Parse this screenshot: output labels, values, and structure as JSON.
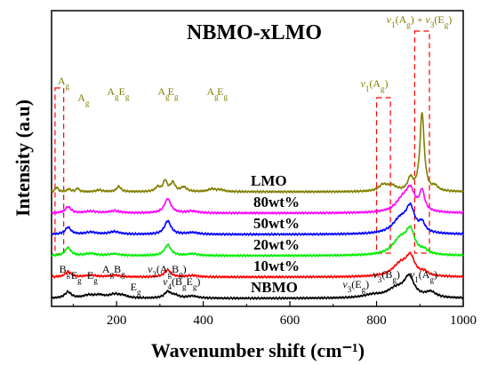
{
  "chart_data": {
    "type": "line",
    "title": "NBMO-xLMO",
    "xlabel": "Wavenumber shift (cm⁻¹)",
    "ylabel": "Intensity (a.u)",
    "xlim": [
      50,
      1000
    ],
    "xticks": [
      200,
      400,
      600,
      800,
      1000
    ],
    "grid": false,
    "series": [
      {
        "name": "LMO",
        "color": "#808000",
        "offset": 6,
        "peaks": [
          [
            62,
            0.25,
            4
          ],
          [
            90,
            0.15,
            5
          ],
          [
            110,
            0.2,
            4
          ],
          [
            160,
            0.1,
            8
          ],
          [
            205,
            0.3,
            6
          ],
          [
            295,
            0.25,
            6
          ],
          [
            312,
            0.6,
            6
          ],
          [
            330,
            0.5,
            6
          ],
          [
            355,
            0.25,
            8
          ],
          [
            420,
            0.15,
            10
          ],
          [
            440,
            0.1,
            10
          ],
          [
            815,
            0.35,
            12
          ],
          [
            835,
            0.3,
            12
          ],
          [
            878,
            0.7,
            7
          ],
          [
            905,
            4.4,
            6
          ],
          [
            935,
            0.25,
            8
          ]
        ]
      },
      {
        "name": "80wt%",
        "color": "#ff00ff",
        "offset": 4.8,
        "peaks": [
          [
            88,
            0.35,
            8
          ],
          [
            140,
            0.1,
            15
          ],
          [
            195,
            0.12,
            15
          ],
          [
            318,
            0.8,
            9
          ],
          [
            375,
            0.1,
            15
          ],
          [
            860,
            0.7,
            20
          ],
          [
            878,
            1.1,
            12
          ],
          [
            905,
            1.1,
            7
          ]
        ]
      },
      {
        "name": "50wt%",
        "color": "#0000ff",
        "offset": 3.6,
        "peaks": [
          [
            88,
            0.4,
            8
          ],
          [
            140,
            0.12,
            15
          ],
          [
            195,
            0.15,
            15
          ],
          [
            318,
            0.75,
            9
          ],
          [
            375,
            0.1,
            15
          ],
          [
            855,
            0.8,
            22
          ],
          [
            878,
            1.3,
            12
          ],
          [
            905,
            0.5,
            8
          ]
        ]
      },
      {
        "name": "20wt%",
        "color": "#00ee00",
        "offset": 2.4,
        "peaks": [
          [
            88,
            0.45,
            8
          ],
          [
            140,
            0.12,
            15
          ],
          [
            195,
            0.1,
            15
          ],
          [
            318,
            0.6,
            9
          ],
          [
            375,
            0.1,
            15
          ],
          [
            855,
            0.9,
            22
          ],
          [
            878,
            1.2,
            12
          ],
          [
            910,
            0.2,
            10
          ]
        ]
      },
      {
        "name": "10wt%",
        "color": "#ff0000",
        "offset": 1.2,
        "peaks": [
          [
            88,
            0.3,
            8
          ],
          [
            140,
            0.1,
            15
          ],
          [
            195,
            0.1,
            15
          ],
          [
            318,
            0.4,
            9
          ],
          [
            375,
            0.08,
            15
          ],
          [
            855,
            0.7,
            22
          ],
          [
            878,
            1.0,
            12
          ],
          [
            910,
            0.2,
            10
          ]
        ]
      },
      {
        "name": "NBMO",
        "color": "#000000",
        "offset": 0,
        "peaks": [
          [
            88,
            0.35,
            9
          ],
          [
            135,
            0.15,
            15
          ],
          [
            160,
            0.15,
            15
          ],
          [
            195,
            0.2,
            15
          ],
          [
            215,
            0.12,
            12
          ],
          [
            318,
            0.35,
            9
          ],
          [
            335,
            0.15,
            10
          ],
          [
            375,
            0.12,
            15
          ],
          [
            790,
            0.15,
            25
          ],
          [
            845,
            0.5,
            25
          ],
          [
            875,
            1.1,
            14
          ],
          [
            925,
            0.3,
            14
          ]
        ]
      }
    ],
    "annotations_top": [
      {
        "text": "A",
        "sub": "g",
        "x": 64
      },
      {
        "text": "A",
        "sub": "g",
        "x": 110
      },
      {
        "text": "A",
        "sub": "g",
        "x": 178
      },
      {
        "text": "E",
        "sub": "g",
        "x": 205
      },
      {
        "text": "A",
        "sub": "g",
        "x": 295
      },
      {
        "text": "E",
        "sub": "g",
        "x": 318
      },
      {
        "text": "A",
        "sub": "g",
        "x": 408
      },
      {
        "text": "E",
        "sub": "g",
        "x": 432
      }
    ],
    "annotations_right_top": [
      {
        "parts": [
          [
            "v",
            "i"
          ],
          [
            "1",
            "sub"
          ],
          [
            "(A",
            ""
          ],
          [
            "g",
            "sub"
          ],
          [
            ")",
            ""
          ]
        ],
        "x": 800,
        "row": "mid"
      },
      {
        "parts": [
          [
            "v",
            "i"
          ],
          [
            "1",
            "sub"
          ],
          [
            "(A",
            ""
          ],
          [
            "g",
            "sub"
          ],
          [
            ") + ",
            ""
          ],
          [
            "v",
            "i"
          ],
          [
            "3",
            "sub"
          ],
          [
            "(E",
            ""
          ],
          [
            "g",
            "sub"
          ],
          [
            ")",
            ""
          ]
        ],
        "x": 860,
        "row": "top"
      }
    ],
    "annotations_bottom": [
      {
        "parts": [
          [
            "B",
            ""
          ],
          [
            "g",
            "sub"
          ]
        ],
        "x": 76
      },
      {
        "parts": [
          [
            "E",
            ""
          ],
          [
            "g",
            "sub"
          ]
        ],
        "x": 103
      },
      {
        "parts": [
          [
            "E",
            ""
          ],
          [
            "g",
            "sub"
          ]
        ],
        "x": 140
      },
      {
        "parts": [
          [
            "A",
            ""
          ],
          [
            "g",
            "sub"
          ],
          [
            "B",
            ""
          ],
          [
            "g",
            "sub"
          ]
        ],
        "x": 175
      },
      {
        "parts": [
          [
            "E",
            ""
          ],
          [
            "g",
            "sub"
          ]
        ],
        "x": 240
      },
      {
        "parts": [
          [
            "v",
            "i"
          ],
          [
            "2",
            "sub"
          ],
          [
            "(A",
            ""
          ],
          [
            "g",
            "sub"
          ],
          [
            "B",
            ""
          ],
          [
            "g",
            "sub"
          ],
          [
            ")",
            ""
          ]
        ],
        "x": 280
      },
      {
        "parts": [
          [
            "v",
            "i"
          ],
          [
            "4",
            "sub"
          ],
          [
            "(B",
            ""
          ],
          [
            "g",
            "sub"
          ],
          [
            "E",
            ""
          ],
          [
            "g",
            "sub"
          ],
          [
            ")",
            ""
          ]
        ],
        "x": 315
      },
      {
        "parts": [
          [
            "v",
            "i"
          ],
          [
            "3",
            "sub"
          ],
          [
            "(E",
            ""
          ],
          [
            "g",
            "sub"
          ],
          [
            ")",
            ""
          ]
        ],
        "x": 730
      },
      {
        "parts": [
          [
            "v",
            "i"
          ],
          [
            "3",
            "sub"
          ],
          [
            "(B",
            ""
          ],
          [
            "g",
            "sub"
          ],
          [
            ")",
            ""
          ]
        ],
        "x": 800
      },
      {
        "parts": [
          [
            "v",
            "i"
          ],
          [
            "1",
            "sub"
          ],
          [
            "(A",
            ""
          ],
          [
            "g",
            "sub"
          ],
          [
            ")",
            ""
          ]
        ],
        "x": 885
      }
    ],
    "dashed_boxes": [
      {
        "x": [
          58,
          78
        ],
        "color": "#ff0000"
      },
      {
        "x": [
          800,
          832
        ],
        "color": "#ff0000"
      },
      {
        "x": [
          888,
          922
        ],
        "color": "#ff0000"
      }
    ]
  }
}
